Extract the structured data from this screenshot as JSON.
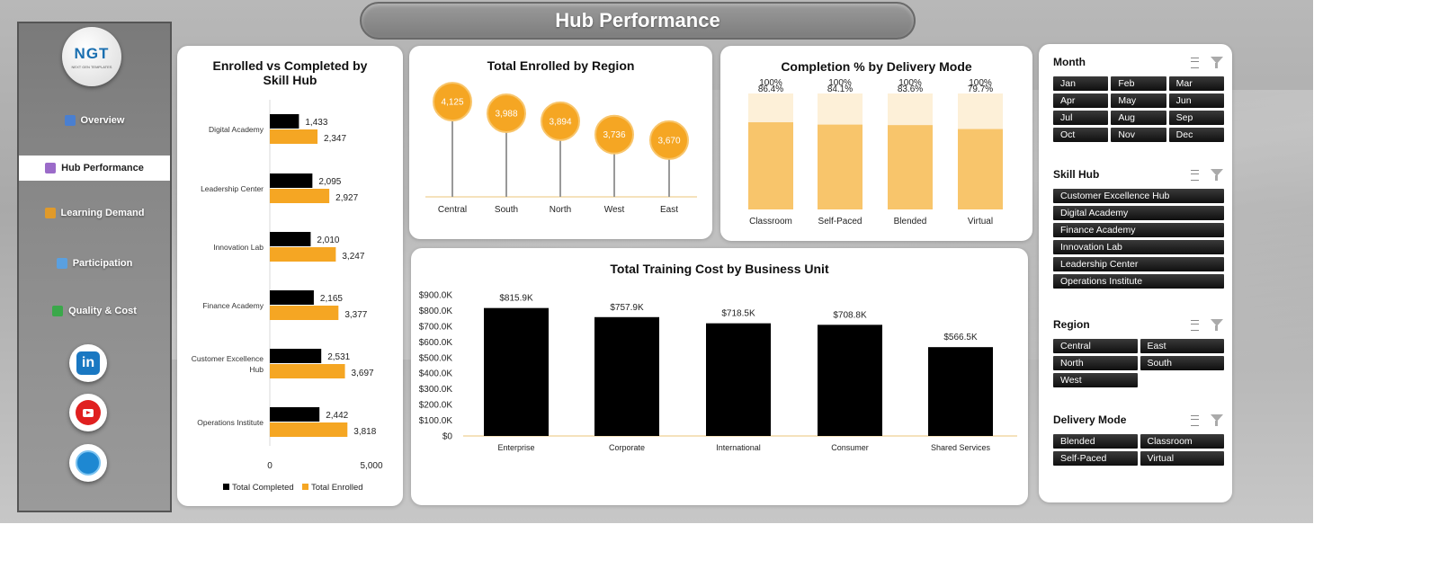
{
  "title": "Hub Performance",
  "logo": {
    "mark": "NGT",
    "tagline": "NEXT GEN TEMPLATES"
  },
  "nav": [
    {
      "label": "Overview",
      "icon": "bar-chart-icon",
      "color": "#4a7fd0",
      "active": false
    },
    {
      "label": "Hub Performance",
      "icon": "hub-icon",
      "color": "#9b6bc9",
      "active": true
    },
    {
      "label": "Learning Demand",
      "icon": "money-bag-icon",
      "color": "#e09a2a",
      "active": false
    },
    {
      "label": "Participation",
      "icon": "line-chart-icon",
      "color": "#5aa0e0",
      "active": false
    },
    {
      "label": "Quality & Cost",
      "icon": "money-icon",
      "color": "#3aa84a",
      "active": false
    }
  ],
  "social": [
    {
      "name": "linkedin-icon",
      "glyph": "in"
    },
    {
      "name": "youtube-icon",
      "glyph": ""
    },
    {
      "name": "website-icon",
      "glyph": ""
    }
  ],
  "enrolled_card": {
    "title": "Enrolled vs Completed by Skill Hub",
    "legend": [
      "Total Completed",
      "Total Enrolled"
    ]
  },
  "region_card": {
    "title": "Total Enrolled by Region"
  },
  "mode_card": {
    "title": "Completion % by Delivery Mode"
  },
  "cost_card": {
    "title": "Total Training Cost by Business Unit"
  },
  "colors": {
    "completed": "#000000",
    "enrolled": "#f5a623",
    "region": "#f5a623",
    "mode": "#f8c56b",
    "mode_bg": "#fdf0d8",
    "cost": "#000000"
  },
  "chart_data": [
    {
      "type": "bar",
      "title": "Enrolled vs Completed by Skill Hub",
      "orientation": "horizontal",
      "categories": [
        "Digital Academy",
        "Leadership Center",
        "Innovation Lab",
        "Finance Academy",
        "Customer Excellence Hub",
        "Operations Institute"
      ],
      "series": [
        {
          "name": "Total Completed",
          "values": [
            1433,
            2095,
            2010,
            2165,
            2531,
            2442
          ]
        },
        {
          "name": "Total Enrolled",
          "values": [
            2347,
            2927,
            3247,
            3377,
            3697,
            3818
          ]
        }
      ],
      "xlim": [
        0,
        5000
      ],
      "ticks": [
        "0",
        "5,000"
      ],
      "labels_completed": [
        "1,433",
        "2,095",
        "2,010",
        "2,165",
        "2,531",
        "2,442"
      ],
      "labels_enrolled": [
        "2,347",
        "2,927",
        "3,247",
        "3,377",
        "3,697",
        "3,818"
      ],
      "legend": "bottom"
    },
    {
      "type": "lollipop",
      "title": "Total Enrolled by Region",
      "categories": [
        "Central",
        "South",
        "North",
        "West",
        "East"
      ],
      "values": [
        4125,
        3988,
        3894,
        3736,
        3670
      ],
      "labels": [
        "4,125",
        "3,988",
        "3,894",
        "3,736",
        "3,670"
      ]
    },
    {
      "type": "bar",
      "title": "Completion % by Delivery Mode",
      "categories": [
        "Classroom",
        "Self-Paced",
        "Blended",
        "Virtual"
      ],
      "values": [
        86.4,
        84.1,
        83.6,
        79.7
      ],
      "labels": [
        "86.4%",
        "84.1%",
        "83.6%",
        "79.7%"
      ],
      "background_values": [
        100,
        100,
        100,
        100
      ],
      "background_labels": [
        "100%",
        "100%",
        "100%",
        "100%"
      ]
    },
    {
      "type": "bar",
      "title": "Total Training Cost by Business Unit",
      "categories": [
        "Enterprise",
        "Corporate",
        "International",
        "Consumer",
        "Shared Services"
      ],
      "values": [
        815.9,
        757.9,
        718.5,
        708.8,
        566.5
      ],
      "labels": [
        "$815.9K",
        "$757.9K",
        "$718.5K",
        "$708.8K",
        "$566.5K"
      ],
      "ylim": [
        0,
        900
      ],
      "yticks": [
        "$0",
        "$100.0K",
        "$200.0K",
        "$300.0K",
        "$400.0K",
        "$500.0K",
        "$600.0K",
        "$700.0K",
        "$800.0K",
        "$900.0K"
      ]
    }
  ],
  "filters": [
    {
      "title": "Month",
      "cols": 3,
      "items": [
        "Jan",
        "Feb",
        "Mar",
        "Apr",
        "May",
        "Jun",
        "Jul",
        "Aug",
        "Sep",
        "Oct",
        "Nov",
        "Dec"
      ]
    },
    {
      "title": "Skill Hub",
      "cols": 1,
      "items": [
        "Customer Excellence Hub",
        "Digital Academy",
        "Finance Academy",
        "Innovation Lab",
        "Leadership Center",
        "Operations Institute"
      ]
    },
    {
      "title": "Region",
      "cols": 2,
      "items": [
        "Central",
        "East",
        "North",
        "South",
        "West"
      ]
    },
    {
      "title": "Delivery Mode",
      "cols": 2,
      "items": [
        "Blended",
        "Classroom",
        "Self-Paced",
        "Virtual"
      ]
    }
  ]
}
